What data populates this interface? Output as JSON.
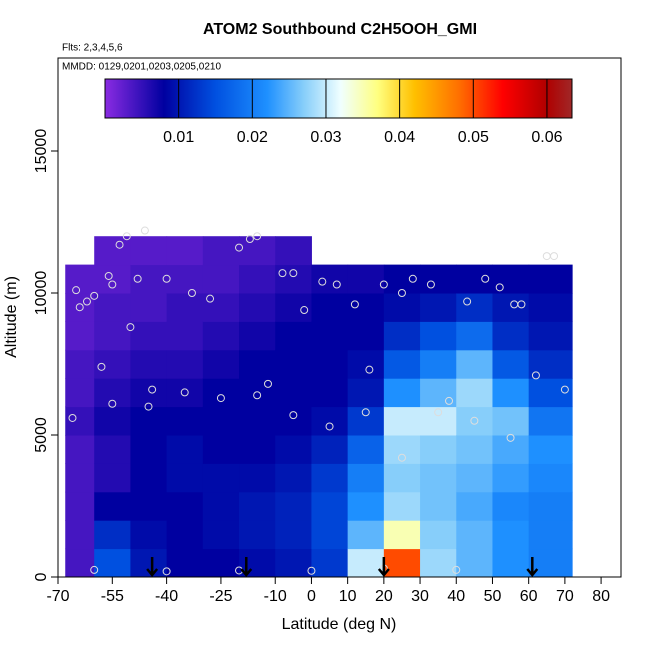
{
  "chart_data": {
    "type": "heatmap",
    "title": "ATOM2 Southbound C2H5OOH_GMI",
    "flights": "Flts: 2,3,4,5,6",
    "dates": "MMDD: 0129,0201,0203,0205,0210",
    "xlabel": "Latitude (deg N)",
    "ylabel": "Altitude (m)",
    "xlim": [
      -70,
      85.5
    ],
    "ylim": [
      0,
      18275
    ],
    "xticks": [
      -70,
      -55,
      -40,
      -25,
      -10,
      0,
      10,
      20,
      30,
      40,
      50,
      60,
      70,
      80
    ],
    "yticks": [
      0,
      5000,
      10000,
      15000
    ],
    "grid": {
      "lat_edges": [
        -68,
        -60,
        -50,
        -40,
        -30,
        -20,
        -10,
        0,
        10,
        20,
        30,
        40,
        50,
        60,
        72
      ],
      "alt_edges": [
        0,
        1000,
        2000,
        3000,
        4000,
        5000,
        6000,
        7000,
        8000,
        9000,
        10000,
        11000,
        12000
      ],
      "values": [
        [
          0.004,
          0.004,
          0.004,
          0.004,
          0.004,
          0.005,
          0.004,
          0.004,
          0.003,
          0.003,
          0.003,
          null
        ],
        [
          0.015,
          0.012,
          0.008,
          0.006,
          0.006,
          0.007,
          0.006,
          0.005,
          0.004,
          0.004,
          0.003,
          0.003
        ],
        [
          0.01,
          0.009,
          0.008,
          0.008,
          0.008,
          0.008,
          0.007,
          0.006,
          0.005,
          0.004,
          0.004,
          0.003
        ],
        [
          0.008,
          0.008,
          0.008,
          0.009,
          0.009,
          0.008,
          0.007,
          0.006,
          0.005,
          0.005,
          0.004,
          0.003
        ],
        [
          0.008,
          0.009,
          0.009,
          0.009,
          0.008,
          0.008,
          0.008,
          0.007,
          0.006,
          0.005,
          0.004,
          0.004
        ],
        [
          0.009,
          0.01,
          0.01,
          0.009,
          0.008,
          0.008,
          0.008,
          0.008,
          0.007,
          0.006,
          0.005,
          0.004
        ],
        [
          0.01,
          0.011,
          0.011,
          0.01,
          0.009,
          0.008,
          0.008,
          0.008,
          0.008,
          0.007,
          0.006,
          0.005
        ],
        [
          0.013,
          0.014,
          0.014,
          0.013,
          0.011,
          0.009,
          0.008,
          0.008,
          0.008,
          0.008,
          0.007,
          null
        ],
        [
          0.03,
          0.025,
          0.022,
          0.02,
          0.017,
          0.013,
          0.01,
          0.009,
          0.008,
          0.008,
          0.007,
          null
        ],
        [
          0.05,
          0.035,
          0.028,
          0.027,
          0.028,
          0.03,
          0.022,
          0.016,
          0.012,
          0.009,
          0.008,
          null
        ],
        [
          0.028,
          0.027,
          0.026,
          0.026,
          0.027,
          0.03,
          0.025,
          0.02,
          0.015,
          0.01,
          0.008,
          null
        ],
        [
          0.025,
          0.025,
          0.024,
          0.025,
          0.026,
          0.027,
          0.028,
          0.025,
          0.018,
          0.012,
          0.008,
          null
        ],
        [
          0.022,
          0.022,
          0.021,
          0.023,
          0.024,
          0.026,
          0.022,
          0.016,
          0.012,
          0.01,
          0.008,
          null
        ],
        [
          0.02,
          0.02,
          0.02,
          0.021,
          0.022,
          0.019,
          0.015,
          0.012,
          0.01,
          0.009,
          0.008,
          null
        ]
      ]
    },
    "colorbar": {
      "lim": [
        0,
        0.0634
      ],
      "ticks": [
        0.01,
        0.02,
        0.03,
        0.04,
        0.05,
        0.06
      ],
      "stops": [
        [
          0,
          "#8a2be2"
        ],
        [
          0.008,
          "#0000a0"
        ],
        [
          0.015,
          "#0050e0"
        ],
        [
          0.022,
          "#1e90ff"
        ],
        [
          0.027,
          "#87cefa"
        ],
        [
          0.032,
          "#f0ffff"
        ],
        [
          0.037,
          "#ffff80"
        ],
        [
          0.042,
          "#ffc000"
        ],
        [
          0.048,
          "#ff7000"
        ],
        [
          0.054,
          "#ff0000"
        ],
        [
          0.06,
          "#b00000"
        ],
        [
          0.0634,
          "#a02828"
        ]
      ]
    },
    "samples": {
      "lat": [
        -65,
        -66,
        -64,
        -62,
        -60,
        -58,
        -56,
        -55,
        -53,
        -51,
        -48,
        -46,
        -44,
        -40,
        -33,
        -28,
        -20,
        -17,
        -15,
        -12,
        -8,
        -5,
        -2,
        3,
        7,
        12,
        16,
        20,
        25,
        28,
        33,
        38,
        43,
        48,
        52,
        56,
        58,
        62,
        67,
        70,
        -55,
        -50,
        -45,
        -35,
        -25,
        -15,
        -5,
        5,
        15,
        25,
        35,
        45,
        55,
        65,
        -60,
        -40,
        -20,
        0,
        20,
        40
      ],
      "alt": [
        10100,
        5600,
        9500,
        9700,
        9900,
        7400,
        10600,
        10300,
        11700,
        12000,
        10500,
        12200,
        6600,
        10500,
        10000,
        9800,
        11600,
        11900,
        12000,
        6800,
        10700,
        10700,
        9400,
        10400,
        10300,
        9600,
        7300,
        10300,
        10000,
        10500,
        10300,
        6200,
        9700,
        10500,
        10200,
        9600,
        9600,
        7100,
        11300,
        6600,
        6100,
        8800,
        6000,
        6500,
        6300,
        6400,
        5700,
        5300,
        5800,
        4200,
        5800,
        5500,
        4900,
        11300,
        250,
        200,
        230,
        220,
        300,
        250
      ]
    },
    "arrows_lat": [
      -44,
      -18,
      20,
      61
    ]
  }
}
